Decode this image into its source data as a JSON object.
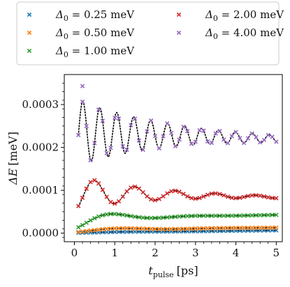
{
  "chart_data": {
    "type": "scatter",
    "xlabel": {
      "symbol": "t",
      "subscript": "pulse",
      "unit": "[ps]"
    },
    "ylabel": {
      "symbol": "ΔE",
      "unit": "[meV]"
    },
    "xlim": [
      -0.25,
      5.15
    ],
    "ylim": [
      -2e-05,
      0.00037
    ],
    "xticks": [
      0,
      1,
      2,
      3,
      4,
      5
    ],
    "xtick_labels": [
      "0",
      "1",
      "2",
      "3",
      "4",
      "5"
    ],
    "yticks": [
      0,
      0.0001,
      0.0002,
      0.0003
    ],
    "ytick_labels": [
      "0.0000",
      "0.0001",
      "0.0002",
      "0.0003"
    ],
    "legend_position": "top, outside plot, two columns",
    "fit_line": {
      "style": "dotted",
      "color": "#000000"
    },
    "series": [
      {
        "name_symbol": "Δ",
        "name_subscript": "0",
        "name_value": " = 0.25 meV",
        "color": "#1f77b4",
        "model": {
          "offset": 1.5e-06,
          "amplitude": 1e-06,
          "decay": 1.5,
          "period": 3.0,
          "drift": 1e-06
        }
      },
      {
        "name_symbol": "Δ",
        "name_subscript": "0",
        "name_value": " = 0.50 meV",
        "color": "#ff7f0e",
        "model": {
          "offset": 8e-06,
          "amplitude": 6e-06,
          "decay": 1.2,
          "period": 2.6,
          "drift": 1e-06
        }
      },
      {
        "name_symbol": "Δ",
        "name_subscript": "0",
        "name_value": " = 1.00 meV",
        "color": "#2ca02c",
        "model": {
          "offset": 3.5e-05,
          "amplitude": 2.5e-05,
          "decay": 0.9,
          "period": 2.1,
          "drift": 1.5e-06
        }
      },
      {
        "name_symbol": "Δ",
        "name_subscript": "0",
        "name_value": " = 2.00 meV",
        "color": "#d62728",
        "model": {
          "offset": 9.4e-05,
          "amplitude": 4e-05,
          "decay": 1.8,
          "period": 1.0,
          "drift": -2e-06
        }
      },
      {
        "name_symbol": "Δ",
        "name_subscript": "0",
        "name_value": " = 4.00 meV",
        "color": "#9467bd",
        "model": {
          "offset": 0.000235,
          "amplitude": 8e-05,
          "decay": 2.2,
          "period": 0.42,
          "drift": -3e-06
        }
      }
    ],
    "sample_x_range": [
      0.1,
      5.0
    ],
    "sample_count": 50,
    "outlier_points": [
      {
        "series_index": 4,
        "x": 0.2,
        "y": 0.000343
      }
    ]
  }
}
